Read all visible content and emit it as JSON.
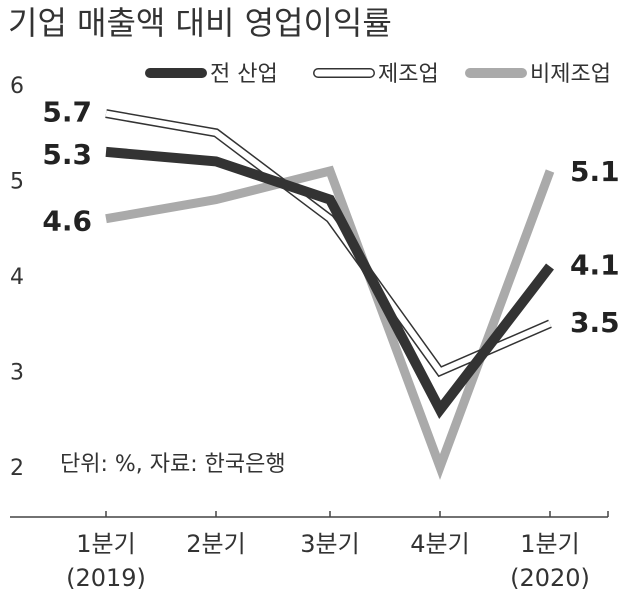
{
  "chart_data": {
    "type": "line",
    "title": "기업 매출액 대비 영업이익률",
    "note": "단위: %, 자료: 한국은행",
    "categories": [
      {
        "line1": "1분기",
        "line2": "(2019)"
      },
      {
        "line1": "2분기",
        "line2": ""
      },
      {
        "line1": "3분기",
        "line2": ""
      },
      {
        "line1": "4분기",
        "line2": ""
      },
      {
        "line1": "1분기",
        "line2": "(2020)"
      }
    ],
    "ylim": [
      2,
      6
    ],
    "yticks": [
      "2",
      "3",
      "4",
      "5",
      "6"
    ],
    "grid": false,
    "legend_position": "top",
    "series": [
      {
        "name": "전 산업",
        "style": "solid-dark",
        "color": "#333333",
        "values": [
          5.3,
          5.2,
          4.8,
          2.6,
          4.1
        ],
        "labels": [
          "5.3",
          "",
          "",
          "",
          "4.1"
        ]
      },
      {
        "name": "제조업",
        "style": "outline",
        "color": "#333333",
        "values": [
          5.7,
          5.5,
          4.6,
          3.0,
          3.5
        ],
        "labels": [
          "5.7",
          "",
          "",
          "",
          "3.5"
        ]
      },
      {
        "name": "비제조업",
        "style": "solid-light",
        "color": "#aaaaaa",
        "values": [
          4.6,
          4.8,
          5.1,
          2.0,
          5.1
        ],
        "labels": [
          "4.6",
          "",
          "",
          "",
          "5.1"
        ]
      }
    ]
  }
}
